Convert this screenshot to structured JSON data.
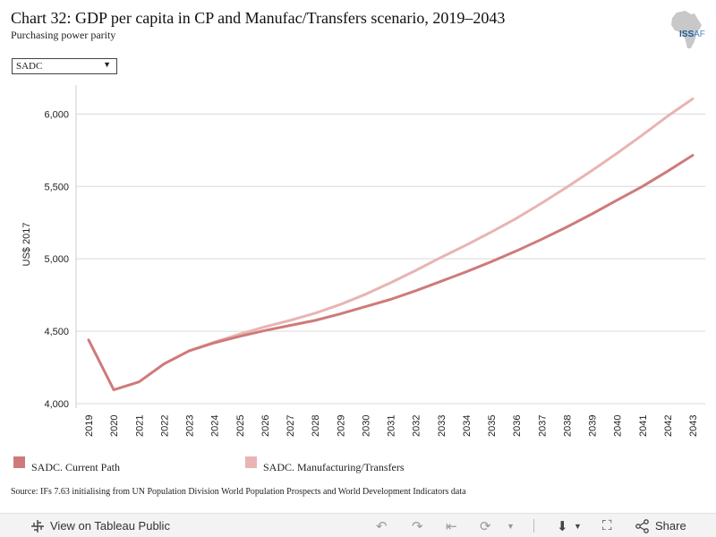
{
  "title": "Chart 32: GDP per capita in CP and Manufac/Transfers scenario, 2019–2043",
  "subtitle": "Purchasing power parity",
  "logo": {
    "text_main": "ISS",
    "text_af": "AF"
  },
  "filter": {
    "selected": "SADC"
  },
  "source": "Source: IFs 7.63 initialising from UN Population Division World Population Prospects and World Development Indicators data",
  "footer": {
    "view_label": "View on Tableau Public",
    "share_label": "Share"
  },
  "colors": {
    "current_path": "#cf7a7a",
    "manufacturing": "#e8b4b4",
    "grid": "#d9d9d9"
  },
  "chart_data": {
    "type": "line",
    "title": "Chart 32: GDP per capita in CP and Manufac/Transfers scenario, 2019–2043",
    "subtitle": "Purchasing power parity",
    "xlabel": "",
    "ylabel": "US$ 2017",
    "ylim": [
      4000,
      6200
    ],
    "yticks": [
      4000,
      4500,
      5000,
      5500,
      6000
    ],
    "ytick_labels": [
      "4,000",
      "4,500",
      "5,000",
      "5,500",
      "6,000"
    ],
    "grid": true,
    "legend_position": "bottom",
    "x": [
      "2019",
      "2020",
      "2021",
      "2022",
      "2023",
      "2024",
      "2025",
      "2026",
      "2027",
      "2028",
      "2029",
      "2030",
      "2031",
      "2032",
      "2033",
      "2034",
      "2035",
      "2036",
      "2037",
      "2038",
      "2039",
      "2040",
      "2041",
      "2042",
      "2043"
    ],
    "series": [
      {
        "name": "SADC. Current Path",
        "color": "#cf7a7a",
        "values": [
          4440,
          4095,
          4150,
          4275,
          4365,
          4420,
          4465,
          4505,
          4540,
          4575,
          4620,
          4670,
          4720,
          4780,
          4845,
          4910,
          4980,
          5055,
          5135,
          5220,
          5310,
          5405,
          5500,
          5605,
          5715
        ]
      },
      {
        "name": "SADC. Manufacturing/Transfers",
        "color": "#e8b4b4",
        "values": [
          null,
          null,
          null,
          null,
          4365,
          4425,
          4480,
          4530,
          4575,
          4625,
          4685,
          4755,
          4835,
          4920,
          5010,
          5095,
          5185,
          5280,
          5385,
          5495,
          5610,
          5730,
          5855,
          5985,
          6105
        ]
      }
    ]
  }
}
